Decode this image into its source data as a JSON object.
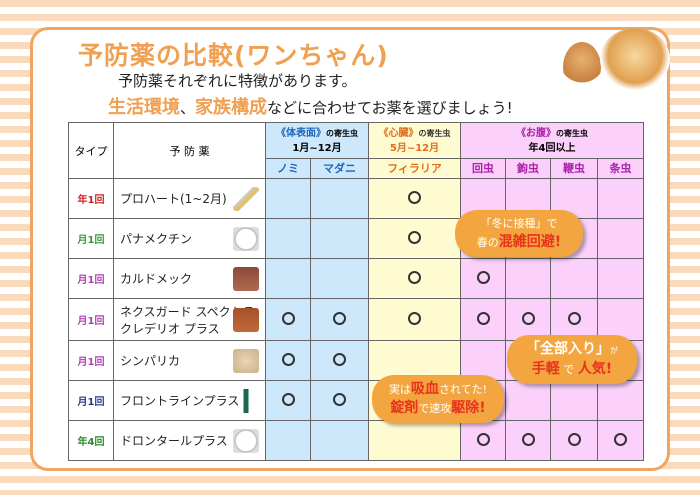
{
  "title": "予防薬の比較(ワンちゃん)",
  "subtitle1": "予防薬それぞれに特徴があります。",
  "subtitle2": {
    "em1": "生活環境",
    "sep": "、",
    "em2": "家族構成",
    "rest": "などに合わせてお薬を選びましょう!"
  },
  "table": {
    "col_type": "タイプ",
    "col_med": "予 防 薬",
    "groups": [
      {
        "name": "《体表面》",
        "suffix": "の寄生虫",
        "period": "1月~12月",
        "color": "#2266bb"
      },
      {
        "name": "《心臓》",
        "suffix": "の寄生虫",
        "period": "5月~12月",
        "color": "#e07020"
      },
      {
        "name": "《お腹》",
        "suffix": "の寄生虫",
        "period": "年4回以上",
        "color": "#aa22aa"
      }
    ],
    "parasites": [
      "ノミ",
      "マダニ",
      "フィラリア",
      "回虫",
      "鉤虫",
      "鞭虫",
      "条虫"
    ],
    "rows": [
      {
        "freq": "年1回",
        "freq_color": "#d02020",
        "name": "プロハート(1~2月)",
        "image": "syringe",
        "marks": [
          0,
          0,
          1,
          0,
          0,
          0,
          0
        ]
      },
      {
        "freq": "月1回",
        "freq_color": "#3a9a3a",
        "name": "パナメクチン",
        "image": "white-tablet",
        "marks": [
          0,
          0,
          1,
          0,
          0,
          0,
          0
        ]
      },
      {
        "freq": "月1回",
        "freq_color": "#b040b0",
        "name": "カルドメック",
        "image": "chewable",
        "marks": [
          0,
          0,
          1,
          1,
          0,
          0,
          0
        ]
      },
      {
        "freq": "月1回",
        "freq_color": "#b040b0",
        "name": "ネクスガード スペクトラ",
        "name2": "クレデリオ プラス",
        "image": "chew-tablet",
        "marks": [
          1,
          1,
          1,
          1,
          1,
          1,
          0
        ]
      },
      {
        "freq": "月1回",
        "freq_color": "#b040b0",
        "name": "シンパリカ",
        "image": "beige-tablet",
        "marks": [
          1,
          1,
          0,
          0,
          0,
          0,
          0
        ]
      },
      {
        "freq": "月1回",
        "freq_color": "#2a3a8a",
        "name": "フロントラインプラス",
        "image": "pipette",
        "marks": [
          1,
          1,
          0,
          0,
          0,
          0,
          0
        ]
      },
      {
        "freq": "年4回",
        "freq_color": "#2a8a2a",
        "name": "ドロンタールプラス",
        "image": "white-tablet",
        "marks": [
          0,
          0,
          0,
          1,
          1,
          1,
          1
        ]
      }
    ]
  },
  "bubbles": [
    {
      "l1a": "「冬",
      "l1b": "に接種」で",
      "l2a": "春の",
      "l2b": "混雑回避!"
    },
    {
      "l1a": "「全部入り」",
      "l1b": "が",
      "l2a": "手軽",
      "l2b": " で ",
      "l2c": "人気!"
    },
    {
      "l1a": "実は",
      "l1b": "吸血",
      "l1c": "されてた!",
      "l2a": "錠剤",
      "l2b": "で速攻",
      "l2c": "駆除!"
    }
  ]
}
